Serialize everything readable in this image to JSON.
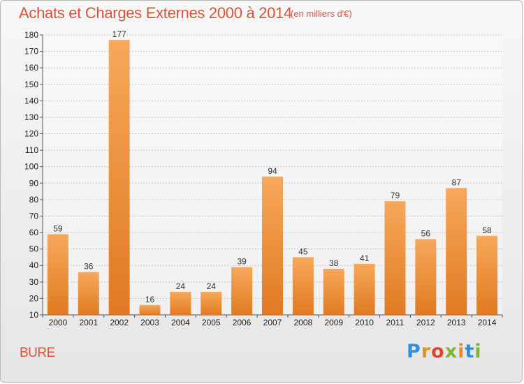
{
  "chart_data": {
    "type": "bar",
    "title": "Achats et Charges Externes 2000 à 2014",
    "subtitle": "(en milliers d'€)",
    "categories": [
      "2000",
      "2001",
      "2002",
      "2003",
      "2004",
      "2005",
      "2006",
      "2007",
      "2008",
      "2009",
      "2010",
      "2011",
      "2012",
      "2013",
      "2014"
    ],
    "values": [
      59,
      36,
      177,
      16,
      24,
      24,
      39,
      94,
      45,
      38,
      41,
      79,
      56,
      87,
      58
    ],
    "ylim": [
      10,
      180
    ],
    "yticks": [
      10,
      20,
      30,
      40,
      50,
      60,
      70,
      80,
      90,
      100,
      110,
      120,
      130,
      140,
      150,
      160,
      170,
      180
    ],
    "grid": true,
    "bar_color_top": "#f7a85a",
    "bar_color_bottom": "#e07a22"
  },
  "commune": "BURE",
  "logo": {
    "letters": [
      "P",
      "r",
      "o",
      "x",
      "i",
      "t",
      "i"
    ]
  }
}
